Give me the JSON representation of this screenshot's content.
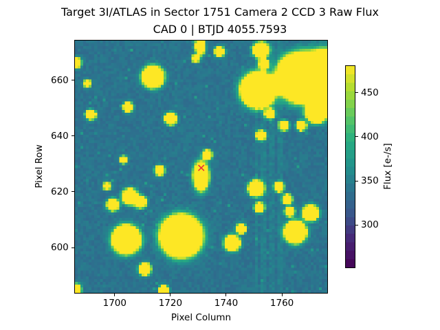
{
  "chart_data": {
    "type": "heatmap",
    "title": "Target 3I/ATLAS in Sector 1751 Camera 2 CCD 3 Raw Flux",
    "subtitle": "CAD 0 | BTJD 4055.7593",
    "xlabel": "Pixel Column",
    "ylabel": "Pixel Row",
    "xlim": [
      1685.5,
      1776.5
    ],
    "ylim": [
      583.5,
      674.5
    ],
    "xticks": [
      1700,
      1720,
      1740,
      1760
    ],
    "yticks": [
      600,
      620,
      640,
      660
    ],
    "colormap": "viridis",
    "colorbar": {
      "label": "Flux [e-/s]",
      "range": [
        251,
        481
      ],
      "ticks": [
        300,
        350,
        400,
        450
      ]
    },
    "background_level": 340,
    "target_marker": {
      "symbol": "x",
      "color": "#e8303a",
      "column": 1730.8,
      "row": 628.6
    },
    "bright_sources": [
      {
        "column": 1767,
        "row": 661.1,
        "size": 4
      },
      {
        "column": 1775.5,
        "row": 662,
        "size": 4
      },
      {
        "column": 1751.6,
        "row": 656.7,
        "size": 3
      },
      {
        "column": 1723.8,
        "row": 604,
        "size": 3.5
      },
      {
        "column": 1704,
        "row": 602.7,
        "size": 2.5
      },
      {
        "column": 1765,
        "row": 605.4,
        "size": 2
      },
      {
        "column": 1713.6,
        "row": 661.4,
        "size": 2
      },
      {
        "column": 1772.7,
        "row": 648.8,
        "size": 2
      },
      {
        "column": 1752.6,
        "row": 671,
        "size": 1.5
      },
      {
        "column": 1742.2,
        "row": 601.5,
        "size": 1.5
      },
      {
        "column": 1745.4,
        "row": 606.7,
        "size": 1
      },
      {
        "column": 1770.5,
        "row": 612.3,
        "size": 1.5
      },
      {
        "column": 1750.9,
        "row": 621.2,
        "size": 1.5
      },
      {
        "column": 1759.1,
        "row": 621.7,
        "size": 1
      },
      {
        "column": 1762.1,
        "row": 617.3,
        "size": 1
      },
      {
        "column": 1763,
        "row": 612.8,
        "size": 1
      },
      {
        "column": 1699.2,
        "row": 615.3,
        "size": 1.2
      },
      {
        "column": 1705.4,
        "row": 618.2,
        "size": 1.5
      },
      {
        "column": 1709.1,
        "row": 616.3,
        "size": 1.2
      },
      {
        "column": 1710.7,
        "row": 592.1,
        "size": 1.2
      },
      {
        "column": 1731,
        "row": 625.6,
        "size": 1.5
      },
      {
        "column": 1720.1,
        "row": 646.3,
        "size": 1.2
      },
      {
        "column": 1716.1,
        "row": 627.6,
        "size": 1
      },
      {
        "column": 1691.3,
        "row": 647.8,
        "size": 1
      },
      {
        "column": 1704.7,
        "row": 650.5,
        "size": 1
      },
      {
        "column": 1752.6,
        "row": 640.2,
        "size": 1
      },
      {
        "column": 1755.8,
        "row": 648.1,
        "size": 1
      },
      {
        "column": 1767.2,
        "row": 643.8,
        "size": 1
      },
      {
        "column": 1760.9,
        "row": 643.8,
        "size": 1
      },
      {
        "column": 1753.6,
        "row": 666,
        "size": 1
      },
      {
        "column": 1730.7,
        "row": 672.4,
        "size": 1
      },
      {
        "column": 1737.7,
        "row": 670.5,
        "size": 1
      },
      {
        "column": 1733.2,
        "row": 633.3,
        "size": 1
      },
      {
        "column": 1717.6,
        "row": 584.5,
        "size": 1
      },
      {
        "column": 1686,
        "row": 585,
        "size": 1
      },
      {
        "column": 1752,
        "row": 614.3,
        "size": 1
      },
      {
        "column": 1729,
        "row": 668,
        "size": 0.8
      },
      {
        "column": 1690,
        "row": 659,
        "size": 0.8
      },
      {
        "column": 1697,
        "row": 622,
        "size": 0.8
      },
      {
        "column": 1703,
        "row": 631.5,
        "size": 0.8
      },
      {
        "column": 1686,
        "row": 666.5,
        "size": 1
      }
    ]
  }
}
